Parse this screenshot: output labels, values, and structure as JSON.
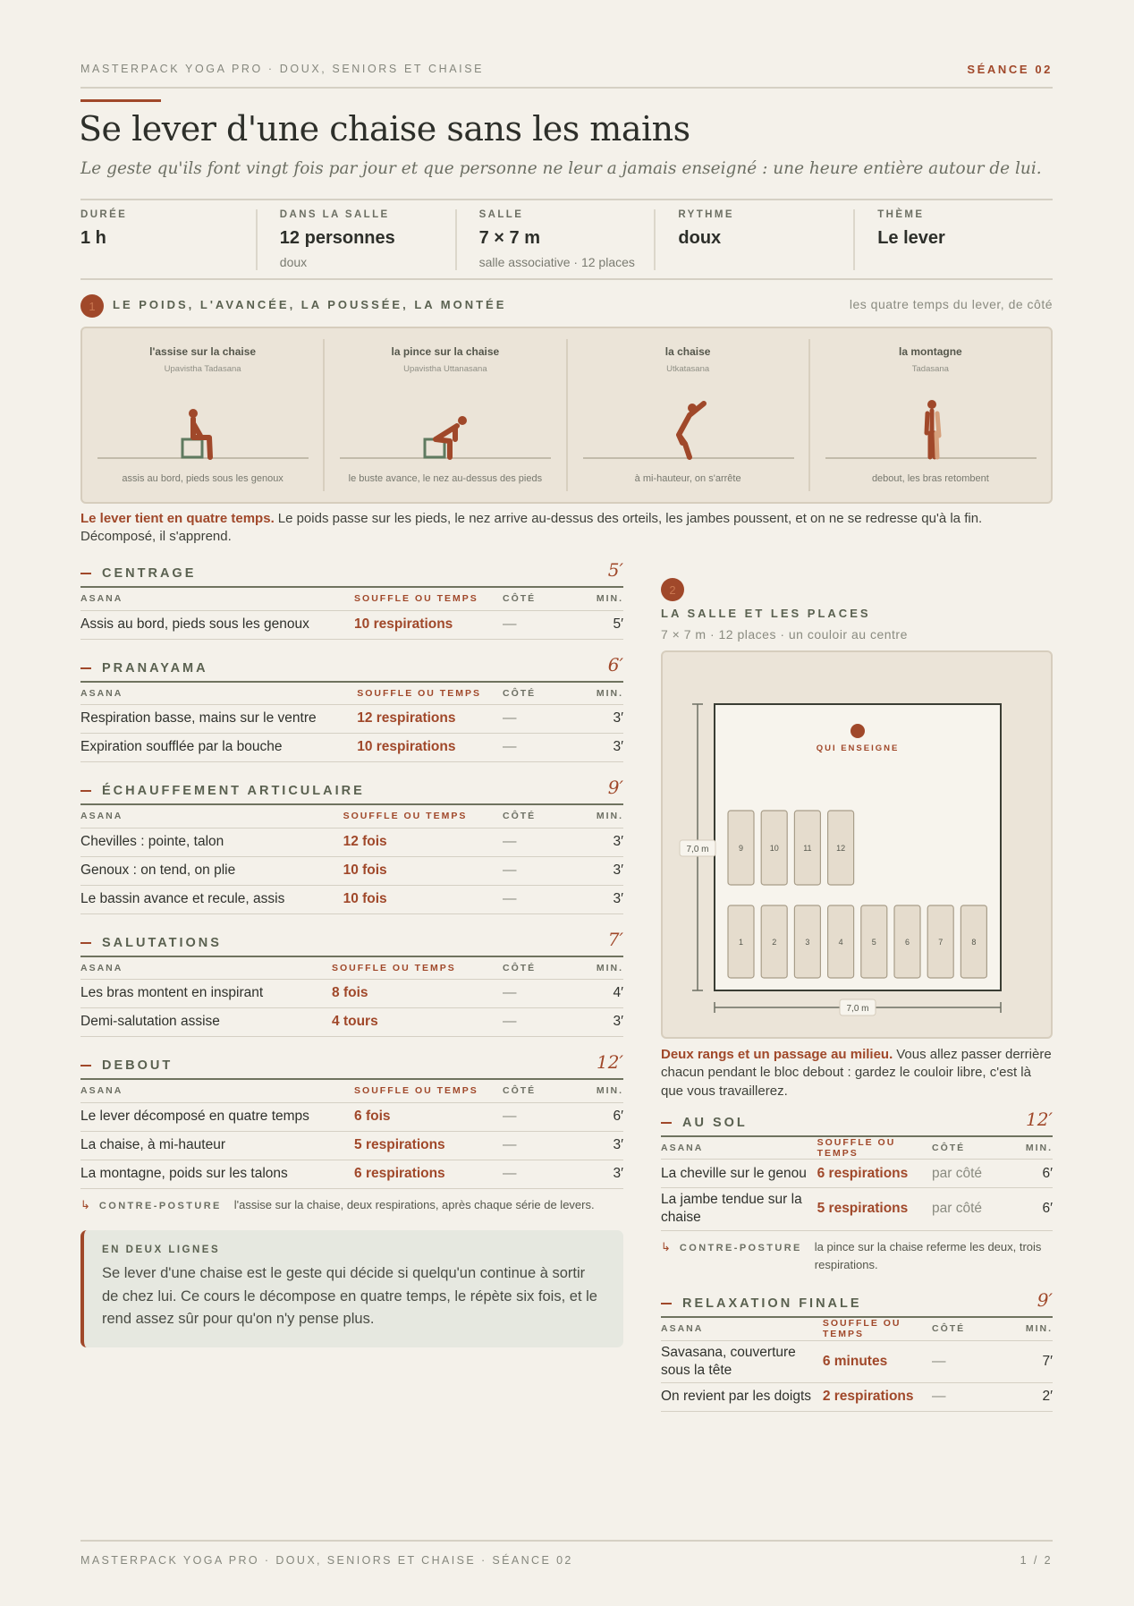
{
  "header": {
    "kicker": "MASTERPACK YOGA PRO · DOUX, SENIORS ET CHAISE",
    "session": "SÉANCE 02",
    "title": "Se lever d'une chaise sans les mains",
    "subtitle": "Le geste qu'ils font vingt fois par jour et que personne ne leur a jamais enseigné : une heure entière autour de lui."
  },
  "stats": [
    {
      "label": "DURÉE",
      "value": "1 h"
    },
    {
      "label": "DANS LA SALLE",
      "value": "12 personnes",
      "note": "doux"
    },
    {
      "label": "SALLE",
      "value": "7 × 7 m",
      "note": "salle associative · 12 places"
    },
    {
      "label": "RYTHME",
      "value": "doux"
    },
    {
      "label": "THÈME",
      "value": "Le lever"
    }
  ],
  "section1": {
    "number": "1",
    "title": "LE POIDS, L'AVANCÉE, LA POUSSÉE, LA MONTÉE",
    "aside": "les quatre temps du lever, de côté",
    "poses": [
      {
        "name": "l'assise sur la chaise",
        "sanskrit": "Upavistha Tadasana",
        "caption": "assis au bord, pieds sous les genoux"
      },
      {
        "name": "la pince sur la chaise",
        "sanskrit": "Upavistha Uttanasana",
        "caption": "le buste avance, le nez au-dessus des pieds"
      },
      {
        "name": "la chaise",
        "sanskrit": "Utkatasana",
        "caption": "à mi-hauteur, on s'arrête"
      },
      {
        "name": "la montagne",
        "sanskrit": "Tadasana",
        "caption": "debout, les bras retombent"
      }
    ],
    "note_lead": "Le lever tient en quatre temps.",
    "note": "Le poids passe sur les pieds, le nez arrive au-dessus des orteils, les jambes poussent, et on ne se redresse qu'à la fin. Décomposé, il s'apprend."
  },
  "table_headers": [
    "ASANA",
    "SOUFFLE OU TEMPS",
    "CÔTÉ",
    "MIN."
  ],
  "counterpose_marker": "↳",
  "counterpose_label": "CONTRE-POSTURE",
  "left_blocks": [
    {
      "title": "CENTRAGE",
      "minutes": "5′",
      "rows": [
        [
          "Assis au bord, pieds sous les genoux",
          "10 respirations",
          "—",
          "5′"
        ]
      ]
    },
    {
      "title": "PRANAYAMA",
      "minutes": "6′",
      "rows": [
        [
          "Respiration basse, mains sur le ventre",
          "12 respirations",
          "—",
          "3′"
        ],
        [
          "Expiration soufflée par la bouche",
          "10 respirations",
          "—",
          "3′"
        ]
      ]
    },
    {
      "title": "ÉCHAUFFEMENT ARTICULAIRE",
      "minutes": "9′",
      "rows": [
        [
          "Chevilles : pointe, talon",
          "12 fois",
          "—",
          "3′"
        ],
        [
          "Genoux : on tend, on plie",
          "10 fois",
          "—",
          "3′"
        ],
        [
          "Le bassin avance et recule, assis",
          "10 fois",
          "—",
          "3′"
        ]
      ]
    },
    {
      "title": "SALUTATIONS",
      "minutes": "7′",
      "rows": [
        [
          "Les bras montent en inspirant",
          "8 fois",
          "—",
          "4′"
        ],
        [
          "Demi-salutation assise",
          "4 tours",
          "—",
          "3′"
        ]
      ]
    },
    {
      "title": "DEBOUT",
      "minutes": "12′",
      "rows": [
        [
          "Le lever décomposé en quatre temps",
          "6 fois",
          "—",
          "6′"
        ],
        [
          "La chaise, à mi-hauteur",
          "5 respirations",
          "—",
          "3′"
        ],
        [
          "La montagne, poids sur les talons",
          "6 respirations",
          "—",
          "3′"
        ]
      ],
      "counterpose": "l'assise sur la chaise, deux respirations, après chaque série de levers."
    }
  ],
  "summary": {
    "title": "EN DEUX LIGNES",
    "text": "Se lever d'une chaise est le geste qui décide si quelqu'un continue à sortir de chez lui. Ce cours le décompose en quatre temps, le répète six fois, et le rend assez sûr pour qu'on n'y pense plus."
  },
  "section2": {
    "number": "2",
    "title": "LA SALLE ET LES PLACES",
    "subtitle": "7 × 7 m · 12 places · un couloir au centre",
    "teacher": "QUI ENSEIGNE",
    "height_label": "7,0 m",
    "width_label": "7,0 m",
    "places": [
      "1",
      "2",
      "3",
      "4",
      "5",
      "6",
      "7",
      "8",
      "9",
      "10",
      "11",
      "12"
    ],
    "note_lead": "Deux rangs et un passage au milieu.",
    "note": "Vous allez passer derrière chacun pendant le bloc debout : gardez le couloir libre, c'est là que vous travaillerez."
  },
  "right_blocks": [
    {
      "title": "AU SOL",
      "minutes": "12′",
      "rows": [
        [
          "La cheville sur le genou",
          "6 respirations",
          "par côté",
          "6′"
        ],
        [
          "La jambe tendue sur la chaise",
          "5 respirations",
          "par côté",
          "6′"
        ]
      ],
      "counterpose": "la pince sur la chaise referme les deux, trois respirations."
    },
    {
      "title": "RELAXATION FINALE",
      "minutes": "9′",
      "rows": [
        [
          "Savasana, couverture sous la tête",
          "6 minutes",
          "—",
          "7′"
        ],
        [
          "On revient par les doigts",
          "2 respirations",
          "—",
          "2′"
        ]
      ]
    }
  ],
  "footer": {
    "text": "MASTERPACK YOGA PRO · DOUX, SENIORS ET CHAISE · SÉANCE 02",
    "page": "1 / 2"
  }
}
